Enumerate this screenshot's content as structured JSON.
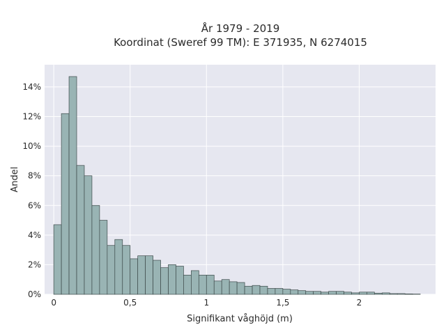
{
  "chart_data": {
    "type": "bar",
    "title_line1": "År 1979 - 2019",
    "title_line2": "Koordinat (Sweref 99 TM): E 371935, N 6274015",
    "xlabel": "Signifikant våghöjd (m)",
    "ylabel": "Andel",
    "bin_start": 0,
    "bin_width": 0.05,
    "xlim": [
      -0.06,
      2.5
    ],
    "ylim": [
      0,
      15.5
    ],
    "x_ticks": [
      0,
      0.5,
      1,
      1.5,
      2
    ],
    "x_tick_labels": [
      "0",
      "0,5",
      "1",
      "1,5",
      "2"
    ],
    "y_ticks": [
      0,
      2,
      4,
      6,
      8,
      10,
      12,
      14
    ],
    "y_tick_labels": [
      "0%",
      "2%",
      "4%",
      "6%",
      "8%",
      "10%",
      "12%",
      "14%"
    ],
    "values": [
      4.7,
      12.2,
      14.7,
      8.7,
      8.0,
      6.0,
      5.0,
      3.3,
      3.7,
      3.3,
      2.4,
      2.6,
      2.6,
      2.3,
      1.8,
      2.0,
      1.9,
      1.3,
      1.6,
      1.3,
      1.3,
      0.9,
      1.0,
      0.85,
      0.8,
      0.55,
      0.6,
      0.55,
      0.4,
      0.4,
      0.35,
      0.3,
      0.25,
      0.2,
      0.2,
      0.15,
      0.2,
      0.2,
      0.15,
      0.1,
      0.15,
      0.15,
      0.08,
      0.1,
      0.05,
      0.05,
      0.03,
      0.02
    ],
    "grid": true,
    "colors": {
      "bar_fill": "#99b4b4",
      "bar_edge": "#3d4a4a",
      "plot_bg": "#e6e7f0",
      "grid": "#ffffff"
    }
  }
}
